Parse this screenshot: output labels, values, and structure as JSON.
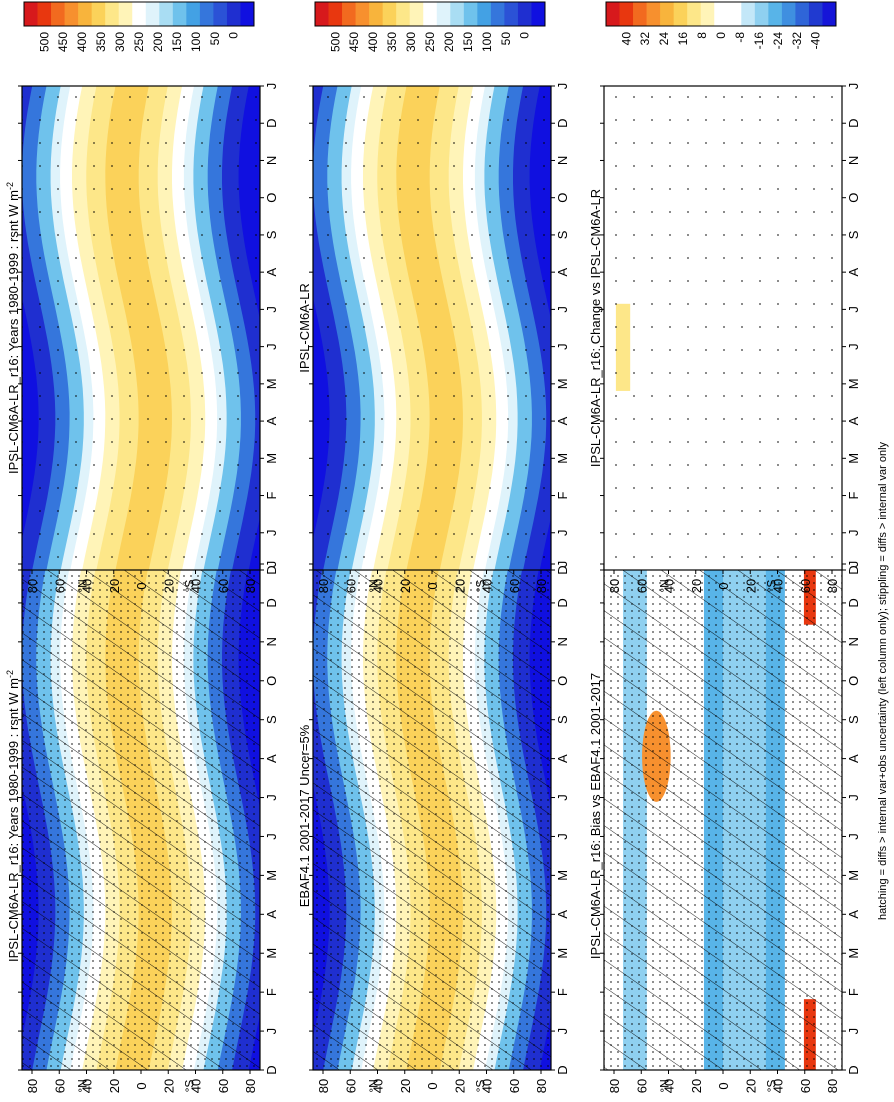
{
  "footnote": "hatching = diffs > internal var+obs uncertainty (left column only); stippling = diffs > internal var only",
  "scales": {
    "absolute": {
      "labels": [
        "500",
        "450",
        "400",
        "350",
        "300",
        "250",
        "200",
        "150",
        "100",
        "50",
        "0"
      ],
      "colors": [
        "#d7191c",
        "#e8370f",
        "#f26a1f",
        "#f7902e",
        "#f8b43c",
        "#fbd25a",
        "#fde789",
        "#fff4b8",
        "#ffffff",
        "#dff3fb",
        "#a9ddf3",
        "#6fc2ec",
        "#43a1e4",
        "#3576dc",
        "#2b52d6",
        "#1f2fd0",
        "#1010e0"
      ]
    },
    "difference": {
      "labels": [
        "40",
        "32",
        "24",
        "16",
        "8",
        "0",
        "-8",
        "-16",
        "-24",
        "-32",
        "-40"
      ],
      "colors": [
        "#d7191c",
        "#e8370f",
        "#f26a1f",
        "#f7902e",
        "#f8b43c",
        "#fbd25a",
        "#fde789",
        "#fff4b8",
        "#ffffff",
        "#ffffff",
        "#c3e7f8",
        "#8fd0f0",
        "#58b4e8",
        "#3f8fe0",
        "#2f65d8",
        "#203ad0",
        "#1515d8"
      ]
    }
  },
  "chart_data": [
    {
      "type": "heatmap",
      "panel": "model-left",
      "title": "IPSL-CM6A-LR_r16: Years 1980-1999 : rsnt W m",
      "title_superscript": "-2",
      "xlabel": "",
      "ylabel": "",
      "x_ticks": [
        "D",
        "J",
        "F",
        "M",
        "A",
        "M",
        "J",
        "J",
        "A",
        "S",
        "O",
        "N",
        "D",
        "J"
      ],
      "y_ticks": [
        "80",
        "60",
        "40",
        "20",
        "0",
        "20",
        "40",
        "60",
        "80"
      ],
      "y_hemisphere": {
        "north": "°N",
        "south": "°S"
      },
      "scale": "absolute",
      "hatching": true,
      "stippling": true
    },
    {
      "type": "heatmap",
      "panel": "obs-left",
      "title": "EBAF4.1 2001-2017 Uncer=5%",
      "x_ticks": [
        "D",
        "J",
        "F",
        "M",
        "A",
        "M",
        "J",
        "J",
        "A",
        "S",
        "O",
        "N",
        "D",
        "J"
      ],
      "y_ticks": [
        "80",
        "60",
        "40",
        "20",
        "0",
        "20",
        "40",
        "60",
        "80"
      ],
      "y_hemisphere": {
        "north": "°N",
        "south": "°S"
      },
      "scale": "absolute",
      "hatching": true,
      "stippling": true
    },
    {
      "type": "heatmap",
      "panel": "bias",
      "title": "IPSL-CM6A-LR_r16: Bias vs EBAF4.1 2001-2017",
      "x_ticks": [
        "D",
        "J",
        "F",
        "M",
        "A",
        "M",
        "J",
        "J",
        "A",
        "S",
        "O",
        "N",
        "D",
        "J"
      ],
      "y_ticks": [
        "80",
        "60",
        "40",
        "20",
        "0",
        "20",
        "40",
        "60",
        "80"
      ],
      "y_hemisphere": {
        "north": "°N",
        "south": "°S"
      },
      "scale": "difference",
      "hatching": true,
      "stippling": true
    },
    {
      "type": "heatmap",
      "panel": "model-right",
      "title": "IPSL-CM6A-LR_r16: Years 1980-1999 : rsnt W m",
      "title_superscript": "-2",
      "x_ticks": [
        "D",
        "J",
        "F",
        "M",
        "A",
        "M",
        "J",
        "J",
        "A",
        "S",
        "O",
        "N",
        "D",
        "J"
      ],
      "y_ticks": [
        "80",
        "60",
        "40",
        "20",
        "0",
        "20",
        "40",
        "60",
        "80"
      ],
      "y_hemisphere": {
        "north": "°N",
        "south": "°S"
      },
      "scale": "absolute",
      "hatching": false,
      "stippling": true
    },
    {
      "type": "heatmap",
      "panel": "reference-right",
      "title": "IPSL-CM6A-LR",
      "x_ticks": [
        "D",
        "J",
        "F",
        "M",
        "A",
        "M",
        "J",
        "J",
        "A",
        "S",
        "O",
        "N",
        "D",
        "J"
      ],
      "y_ticks": [
        "80",
        "60",
        "40",
        "20",
        "0",
        "20",
        "40",
        "60",
        "80"
      ],
      "y_hemisphere": {
        "north": "°N",
        "south": "°S"
      },
      "scale": "absolute",
      "hatching": false,
      "stippling": true
    },
    {
      "type": "heatmap",
      "panel": "change",
      "title": "IPSL-CM6A-LR_r16: Change vs IPSL-CM6A-LR",
      "x_ticks": [
        "D",
        "J",
        "F",
        "M",
        "A",
        "M",
        "J",
        "J",
        "A",
        "S",
        "O",
        "N",
        "D",
        "J"
      ],
      "y_ticks": [
        "80",
        "60",
        "40",
        "20",
        "0",
        "20",
        "40",
        "60",
        "80"
      ],
      "y_hemisphere": {
        "north": "°N",
        "south": "°S"
      },
      "scale": "difference",
      "hatching": false,
      "stippling": true
    }
  ]
}
